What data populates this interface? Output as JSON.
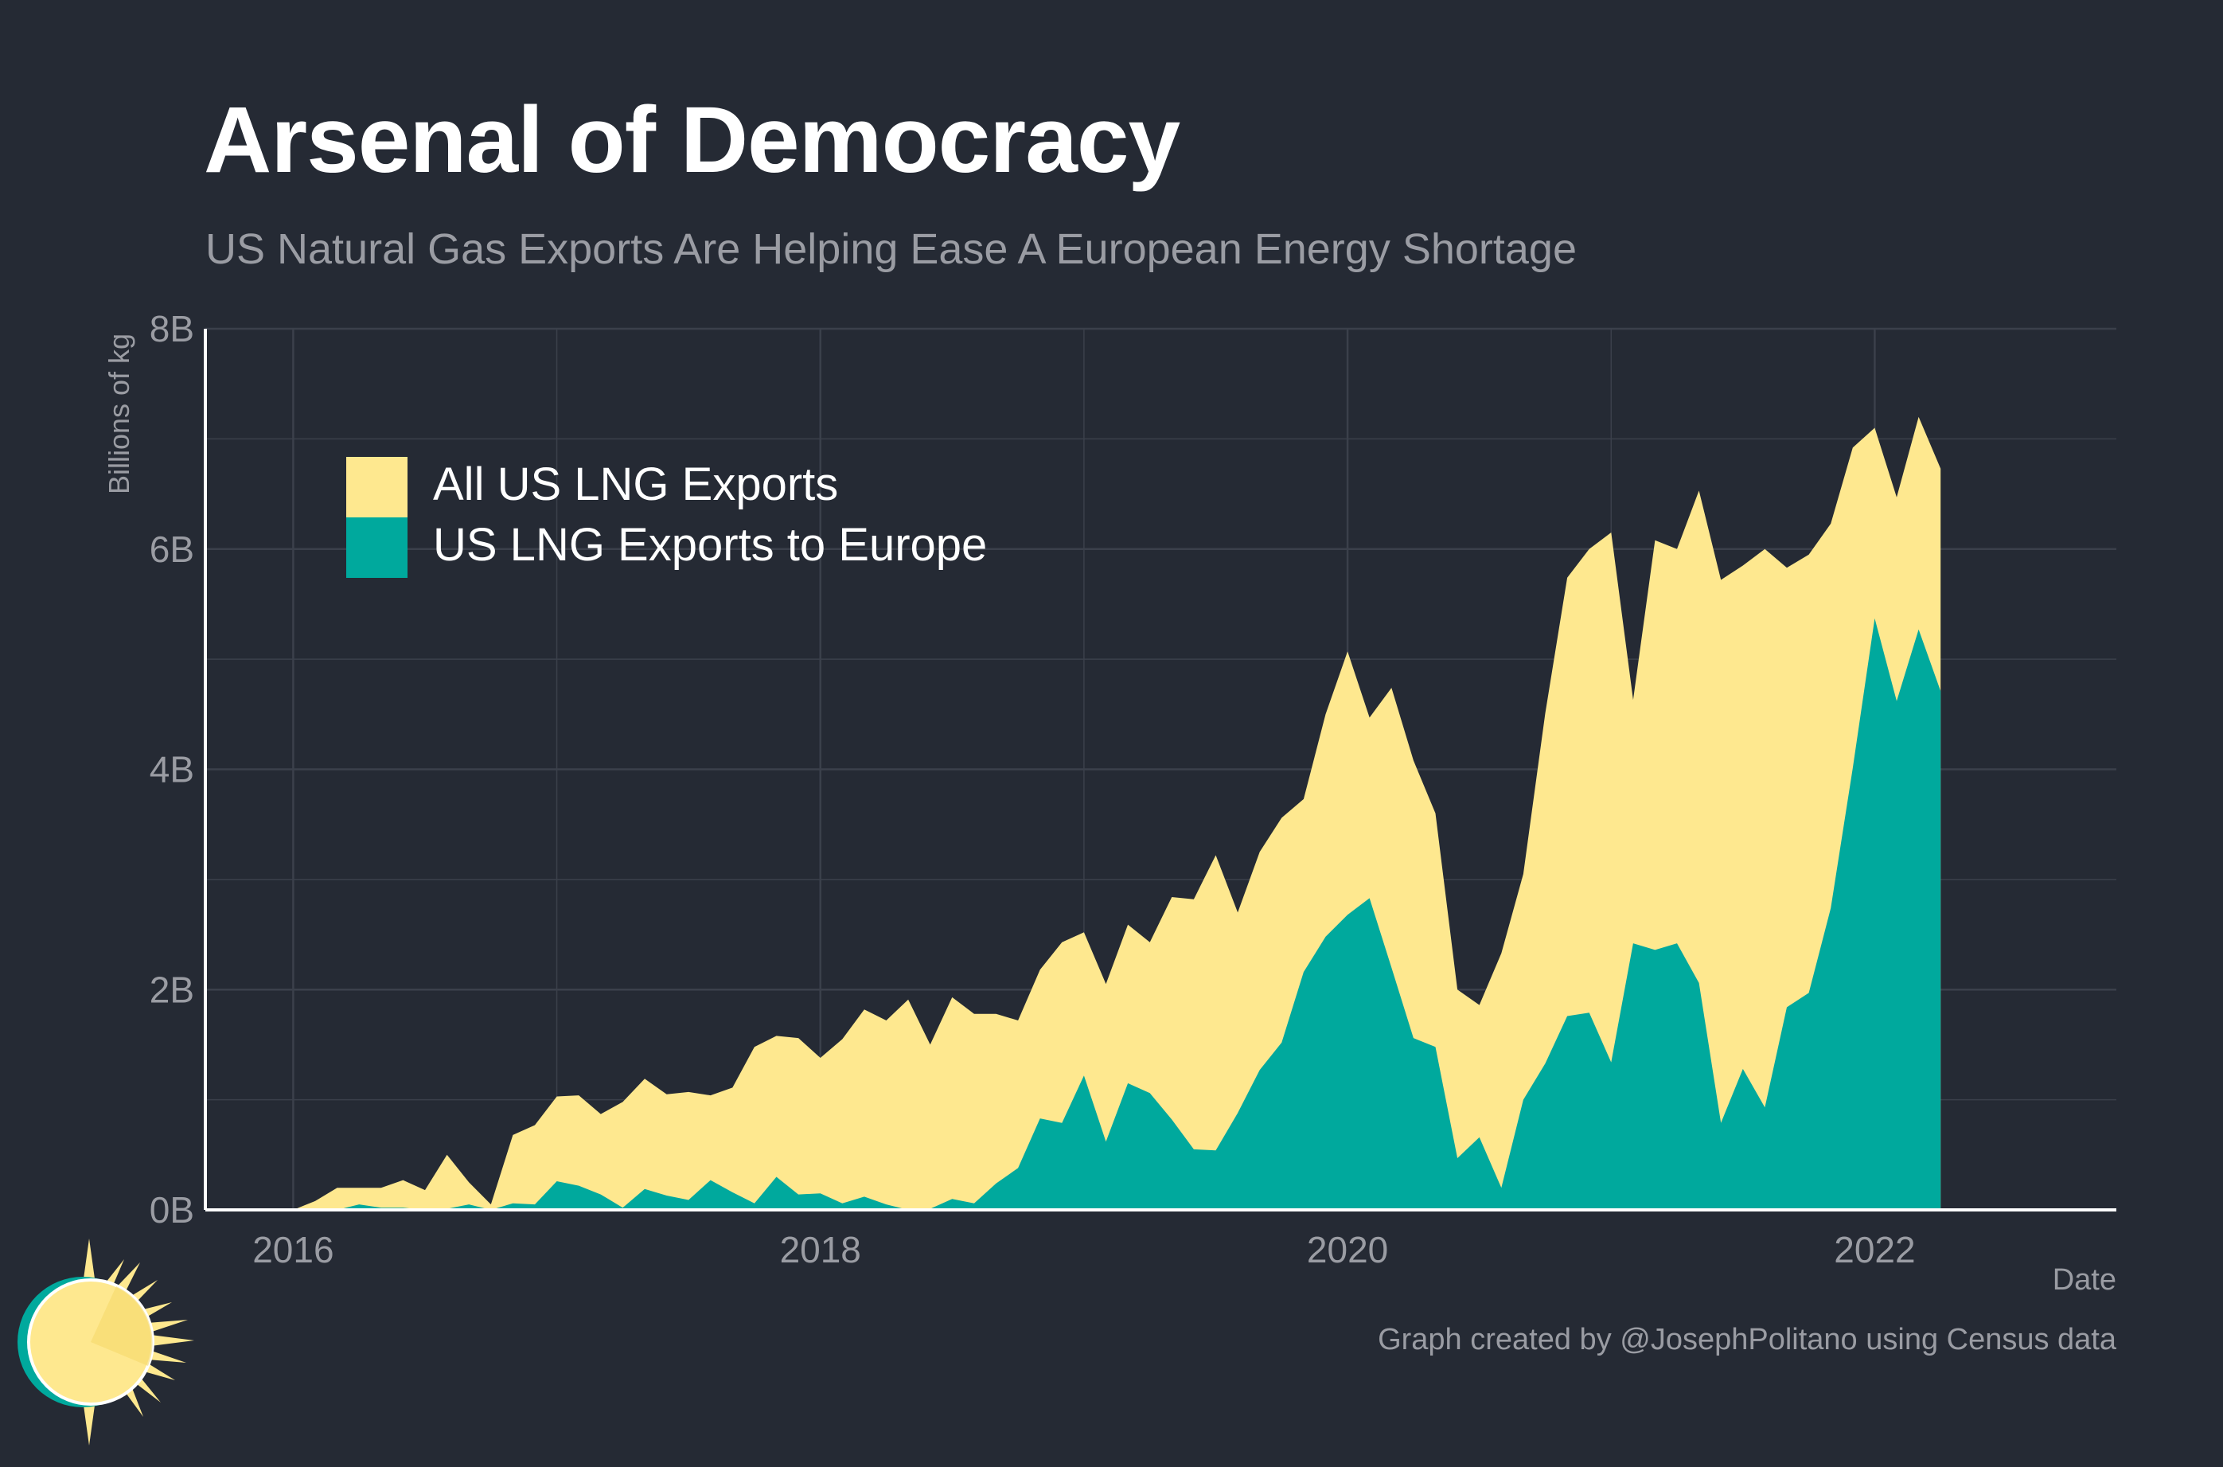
{
  "title": "Arsenal of Democracy",
  "subtitle": "US Natural Gas Exports Are Helping Ease A European Energy Shortage",
  "caption": "Graph created by @JosephPolitano using Census data",
  "colors": {
    "background": "#252a34",
    "all_exports": "#fee88f",
    "europe_exports": "#00a99d",
    "grid": "#3b404b",
    "axis": "#ffffff",
    "text_muted": "#9a9ca3"
  },
  "chart_data": {
    "type": "area",
    "ylabel": "Billions of kg",
    "xlabel": "Date",
    "ylim": [
      0,
      8
    ],
    "xlim": [
      "2015-09",
      "2022-12"
    ],
    "y_ticks": [
      {
        "value": 0,
        "label": "0B"
      },
      {
        "value": 2,
        "label": "2B"
      },
      {
        "value": 4,
        "label": "4B"
      },
      {
        "value": 6,
        "label": "6B"
      },
      {
        "value": 8,
        "label": "8B"
      }
    ],
    "x_ticks": [
      "2016",
      "2018",
      "2020",
      "2022"
    ],
    "grid": true,
    "legend_position": "top-left",
    "x": [
      "2016-01",
      "2016-02",
      "2016-03",
      "2016-04",
      "2016-05",
      "2016-06",
      "2016-07",
      "2016-08",
      "2016-09",
      "2016-10",
      "2016-11",
      "2016-12",
      "2017-01",
      "2017-02",
      "2017-03",
      "2017-04",
      "2017-05",
      "2017-06",
      "2017-07",
      "2017-08",
      "2017-09",
      "2017-10",
      "2017-11",
      "2017-12",
      "2018-01",
      "2018-02",
      "2018-03",
      "2018-04",
      "2018-05",
      "2018-06",
      "2018-07",
      "2018-08",
      "2018-09",
      "2018-10",
      "2018-11",
      "2018-12",
      "2019-01",
      "2019-02",
      "2019-03",
      "2019-04",
      "2019-05",
      "2019-06",
      "2019-07",
      "2019-08",
      "2019-09",
      "2019-10",
      "2019-11",
      "2019-12",
      "2020-01",
      "2020-02",
      "2020-03",
      "2020-04",
      "2020-05",
      "2020-06",
      "2020-07",
      "2020-08",
      "2020-09",
      "2020-10",
      "2020-11",
      "2020-12",
      "2021-01",
      "2021-02",
      "2021-03",
      "2021-04",
      "2021-05",
      "2021-06",
      "2021-07",
      "2021-08",
      "2021-09",
      "2021-10",
      "2021-11",
      "2021-12",
      "2022-01",
      "2022-02",
      "2022-03",
      "2022-04"
    ],
    "series": [
      {
        "name": "All US LNG Exports",
        "color": "#fee88f",
        "values": [
          0.0,
          0.08,
          0.2,
          0.2,
          0.2,
          0.27,
          0.18,
          0.5,
          0.25,
          0.05,
          0.68,
          0.77,
          1.03,
          1.04,
          0.87,
          0.98,
          1.19,
          1.05,
          1.07,
          1.04,
          1.11,
          1.48,
          1.58,
          1.56,
          1.38,
          1.55,
          1.82,
          1.72,
          1.91,
          1.5,
          1.93,
          1.78,
          1.78,
          1.72,
          2.18,
          2.43,
          2.52,
          2.05,
          2.59,
          2.43,
          2.84,
          2.82,
          3.22,
          2.7,
          3.25,
          3.56,
          3.73,
          4.5,
          5.07,
          4.47,
          4.74,
          4.08,
          3.6,
          2.0,
          1.86,
          2.33,
          3.05,
          4.51,
          5.74,
          6.0,
          6.15,
          4.63,
          6.08,
          6.0,
          6.53,
          5.72,
          5.85,
          6.0,
          5.83,
          5.95,
          6.23,
          6.92,
          7.1,
          6.47,
          7.2,
          6.73
        ]
      },
      {
        "name": "US LNG Exports to Europe",
        "color": "#00a99d",
        "values": [
          0.0,
          0.0,
          0.0,
          0.05,
          0.02,
          0.02,
          0.0,
          0.01,
          0.05,
          0.0,
          0.06,
          0.05,
          0.26,
          0.22,
          0.14,
          0.02,
          0.19,
          0.13,
          0.09,
          0.27,
          0.16,
          0.06,
          0.3,
          0.14,
          0.15,
          0.06,
          0.12,
          0.05,
          0.0,
          0.01,
          0.1,
          0.06,
          0.24,
          0.38,
          0.83,
          0.79,
          1.22,
          0.62,
          1.15,
          1.06,
          0.82,
          0.55,
          0.54,
          0.88,
          1.27,
          1.52,
          2.16,
          2.48,
          2.68,
          2.83,
          2.2,
          1.56,
          1.48,
          0.47,
          0.66,
          0.2,
          1.0,
          1.33,
          1.76,
          1.79,
          1.34,
          2.42,
          2.36,
          2.42,
          2.06,
          0.79,
          1.28,
          0.93,
          1.84,
          1.97,
          2.74,
          4.01,
          5.37,
          4.62,
          5.27,
          4.71
        ]
      }
    ]
  }
}
